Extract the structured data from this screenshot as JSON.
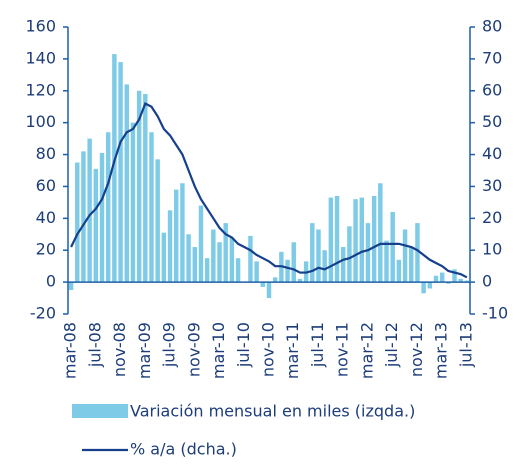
{
  "chart_data": {
    "type": "bar-line",
    "categories": [
      "mar-08",
      null,
      null,
      null,
      "jul-08",
      null,
      null,
      null,
      "nov-08",
      null,
      null,
      null,
      "mar-09",
      null,
      null,
      null,
      "jul-09",
      null,
      null,
      null,
      "nov-09",
      null,
      null,
      null,
      "mar-10",
      null,
      null,
      null,
      "jul-10",
      null,
      null,
      null,
      "nov-10",
      null,
      null,
      null,
      "mar-11",
      null,
      null,
      null,
      "jul-11",
      null,
      null,
      null,
      "nov-11",
      null,
      null,
      null,
      "mar-12",
      null,
      null,
      null,
      "jul-12",
      null,
      null,
      null,
      "nov-12",
      null,
      null,
      null,
      "mar-13",
      null,
      null,
      null,
      "jul-13"
    ],
    "series": [
      {
        "name": "Variación mensual en miles (izqda.)",
        "type": "bar",
        "color": "#7ecbe8",
        "values": [
          -5,
          75,
          82,
          90,
          71,
          81,
          94,
          143,
          138,
          124,
          100,
          120,
          118,
          94,
          77,
          31,
          45,
          58,
          62,
          30,
          22,
          48,
          15,
          33,
          25,
          37,
          28,
          15,
          0,
          29,
          13,
          -3,
          -10,
          3,
          19,
          14,
          25,
          2,
          13,
          37,
          33,
          20,
          53,
          54,
          22,
          35,
          52,
          53,
          37,
          54,
          62,
          26,
          44,
          14,
          33,
          22,
          37,
          -7,
          -4,
          4,
          6,
          -1,
          8,
          2,
          1
        ]
      },
      {
        "name": "% a/a (dcha.)",
        "type": "line",
        "axis": "y2",
        "color": "#163f8c",
        "values": [
          11,
          15,
          18,
          21,
          23,
          26,
          31,
          38,
          44,
          47,
          48,
          51,
          56,
          55,
          52,
          48,
          46,
          43,
          40,
          35,
          30,
          26,
          23,
          20,
          17,
          15,
          14,
          12,
          11,
          10,
          8.5,
          7.5,
          6.5,
          5,
          5,
          4.5,
          4,
          3,
          3,
          3.5,
          4.5,
          4,
          5,
          6,
          7,
          7.5,
          8.5,
          9.5,
          10,
          11,
          12,
          12,
          12,
          12,
          11.5,
          11,
          10,
          8.5,
          7,
          6,
          5,
          3.5,
          3,
          2.5,
          1.5
        ]
      }
    ],
    "ylim": [
      -20,
      160
    ],
    "yticks": [
      -20,
      0,
      20,
      40,
      60,
      80,
      100,
      120,
      140,
      160
    ],
    "y2lim": [
      -10,
      80
    ],
    "y2ticks": [
      -10,
      0,
      10,
      20,
      30,
      40,
      50,
      60,
      70,
      80
    ]
  }
}
